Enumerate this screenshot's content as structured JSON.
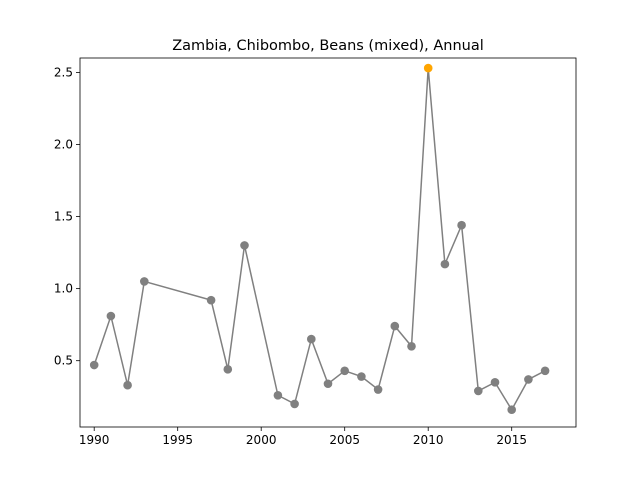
{
  "chart_data": {
    "type": "line",
    "title": "Zambia, Chibombo, Beans (mixed), Annual",
    "xlabel": "",
    "ylabel": "",
    "xlim": [
      1989.15,
      2018.85
    ],
    "ylim": [
      0.04,
      2.6
    ],
    "grid": false,
    "x_ticks": [
      1990,
      1995,
      2000,
      2005,
      2010,
      2015
    ],
    "x_tick_labels": [
      "1990",
      "1995",
      "2000",
      "2005",
      "2010",
      "2015"
    ],
    "y_ticks": [
      0.5,
      1.0,
      1.5,
      2.0,
      2.5
    ],
    "y_tick_labels": [
      "0.5",
      "1.0",
      "1.5",
      "2.0",
      "2.5"
    ],
    "colors": {
      "line": "#808080",
      "marker": "#808080",
      "highlight": "#ffa500"
    },
    "highlight_x": 2010,
    "series": [
      {
        "x": [
          1990,
          1991,
          1992,
          1993,
          1997,
          1998,
          1999,
          2001,
          2002,
          2003,
          2004,
          2005,
          2006,
          2007,
          2008,
          2009,
          2010,
          2011,
          2012,
          2013,
          2014,
          2015,
          2016,
          2017
        ],
        "y": [
          0.47,
          0.81,
          0.33,
          1.05,
          0.92,
          0.44,
          1.3,
          0.26,
          0.2,
          0.65,
          0.34,
          0.43,
          0.39,
          0.3,
          0.74,
          0.6,
          2.53,
          1.17,
          1.44,
          0.29,
          0.35,
          0.16,
          0.37,
          0.43
        ]
      }
    ]
  }
}
